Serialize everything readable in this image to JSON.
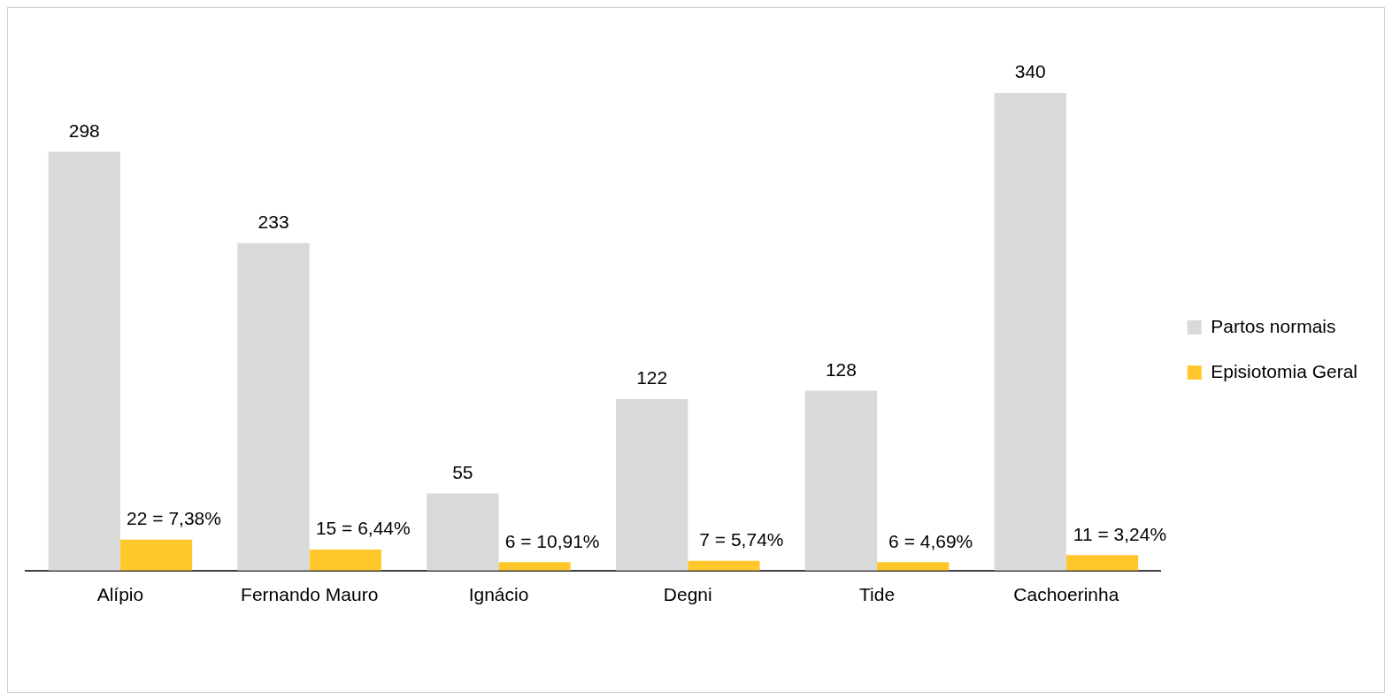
{
  "chart_data": {
    "type": "bar",
    "categories": [
      "Alípio",
      "Fernando Mauro",
      "Ignácio",
      "Degni",
      "Tide",
      "Cachoerinha"
    ],
    "series": [
      {
        "name": "Partos normais",
        "color": "#d9d9d9",
        "values": [
          298,
          233,
          55,
          122,
          128,
          340
        ],
        "value_labels": [
          "298",
          "233",
          "55",
          "122",
          "128",
          "340"
        ]
      },
      {
        "name": "Episiotomia Geral",
        "color": "#ffc72c",
        "values": [
          22,
          15,
          6,
          7,
          6,
          11
        ],
        "value_labels": [
          "22 = 7,38%",
          "15 = 6,44%",
          "6 = 10,91%",
          "7 = 5,74%",
          "6 = 4,69%",
          "11 = 3,24%"
        ]
      }
    ],
    "legend": "right",
    "grid": false,
    "tick_labels": "x"
  }
}
